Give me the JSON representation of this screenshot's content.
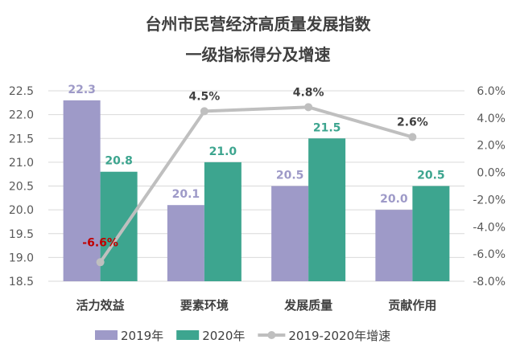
{
  "chart_data": {
    "type": "bar",
    "title": [
      "台州市民营经济高质量发展指数",
      "一级指标得分及增速"
    ],
    "categories": [
      "活力效益",
      "要素环境",
      "发展质量",
      "贡献作用"
    ],
    "series": [
      {
        "name": "2019年",
        "type": "bar",
        "axis": "left",
        "color": "#9e9ac8",
        "values": [
          22.3,
          20.1,
          20.5,
          20.0
        ],
        "labels": [
          "22.3",
          "20.1",
          "20.5",
          "20.0"
        ]
      },
      {
        "name": "2020年",
        "type": "bar",
        "axis": "left",
        "color": "#3da58f",
        "values": [
          20.8,
          21.0,
          21.5,
          20.5
        ],
        "labels": [
          "20.8",
          "21.0",
          "21.5",
          "20.5"
        ]
      },
      {
        "name": "2019-2020年增速",
        "type": "line",
        "axis": "right",
        "color": "#bfbfbf",
        "values": [
          -6.6,
          4.5,
          4.8,
          2.6
        ],
        "labels": [
          "-6.6%",
          "4.5%",
          "4.8%",
          "2.6%"
        ],
        "label_colors": [
          "#c00000",
          "#404040",
          "#404040",
          "#404040"
        ]
      }
    ],
    "ylim": [
      18.5,
      22.5
    ],
    "yticks": [
      "18.5",
      "19.0",
      "19.5",
      "20.0",
      "20.5",
      "21.0",
      "21.5",
      "22.0",
      "22.5"
    ],
    "y2lim": [
      -8,
      6
    ],
    "y2ticks": [
      "-8.0%",
      "-6.0%",
      "-4.0%",
      "-2.0%",
      "0.0%",
      "2.0%",
      "4.0%",
      "6.0%"
    ],
    "grid": true,
    "legend": "bottom"
  }
}
